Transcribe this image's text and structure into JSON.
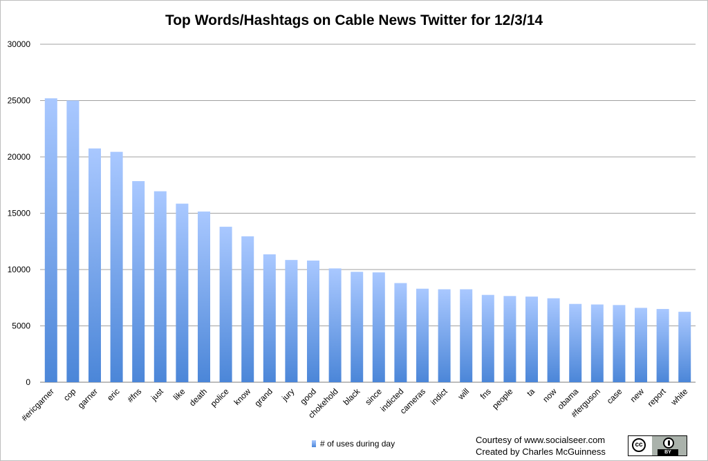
{
  "chart_data": {
    "type": "bar",
    "title": "Top Words/Hashtags on Cable News Twitter for 12/3/14",
    "xlabel": "",
    "ylabel": "",
    "ylim": [
      0,
      30000
    ],
    "yticks": [
      0,
      5000,
      10000,
      15000,
      20000,
      25000,
      30000
    ],
    "grid": true,
    "legend_position": "bottom",
    "categories": [
      "#ericgarner",
      "cop",
      "garner",
      "eric",
      "#fns",
      "just",
      "like",
      "death",
      "police",
      "know",
      "grand",
      "jury",
      "good",
      "chokehold",
      "black",
      "since",
      "indicted",
      "cameras",
      "indict",
      "will",
      "fns",
      "people",
      "ta",
      "now",
      "obama",
      "#ferguson",
      "case",
      "new",
      "report",
      "white"
    ],
    "series": [
      {
        "name": "# of uses during day",
        "values": [
          25200,
          25000,
          20750,
          20450,
          17850,
          16950,
          15850,
          15150,
          13800,
          12950,
          11350,
          10850,
          10800,
          10100,
          9800,
          9750,
          8800,
          8300,
          8250,
          8250,
          7750,
          7650,
          7600,
          7450,
          6950,
          6900,
          6850,
          6600,
          6500,
          6250
        ]
      }
    ],
    "colors": {
      "bar_top": "#a9c8ff",
      "bar_bottom": "#4b86d8",
      "grid": "#a0a0a0"
    }
  },
  "legend": {
    "label": "# of uses during day"
  },
  "credits": {
    "line1": "Courtesy of www.socialseer.com",
    "line2": "Created by Charles McGuinness"
  },
  "license_badge": {
    "cc_text": "cc",
    "by_text": "BY"
  }
}
